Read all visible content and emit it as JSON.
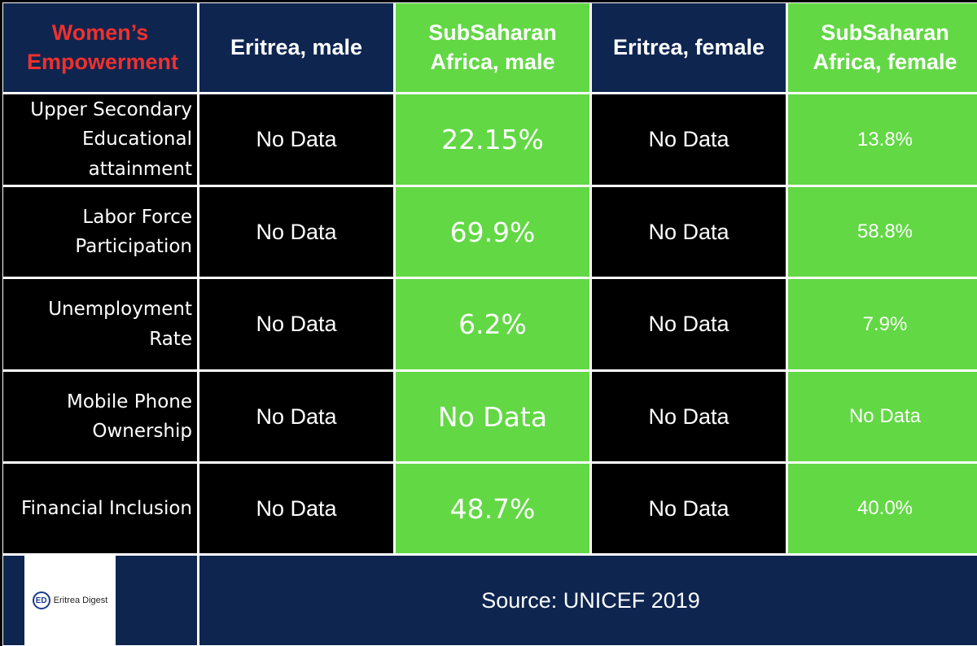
{
  "header": {
    "title": "Women’s Empowerment",
    "columns": [
      "Eritrea, male",
      "SubSaharan Africa, male",
      "Eritrea, female",
      "SubSaharan Africa, female"
    ]
  },
  "rows": [
    {
      "label": "Upper Secondary Educational attainment",
      "values": [
        "No Data",
        "22.15%",
        "No Data",
        "13.8%"
      ]
    },
    {
      "label": "Labor Force Participation",
      "values": [
        "No Data",
        "69.9%",
        "No Data",
        "58.8%"
      ]
    },
    {
      "label": "Unemployment Rate",
      "values": [
        "No Data",
        "6.2%",
        "No Data",
        "7.9%"
      ]
    },
    {
      "label": "Mobile Phone Ownership",
      "values": [
        "No Data",
        "No Data",
        "No Data",
        "No Data"
      ]
    },
    {
      "label": "Financial Inclusion",
      "values": [
        "No Data",
        "48.7%",
        "No Data",
        "40.0%"
      ]
    }
  ],
  "footer": {
    "logo_text": "Eritrea Digest",
    "logo_mark": "ED",
    "source": "Source: UNICEF 2019"
  },
  "colors": {
    "navy": "#0e2550",
    "green": "#62d844",
    "title_red": "#f0302c",
    "black": "#000000"
  }
}
